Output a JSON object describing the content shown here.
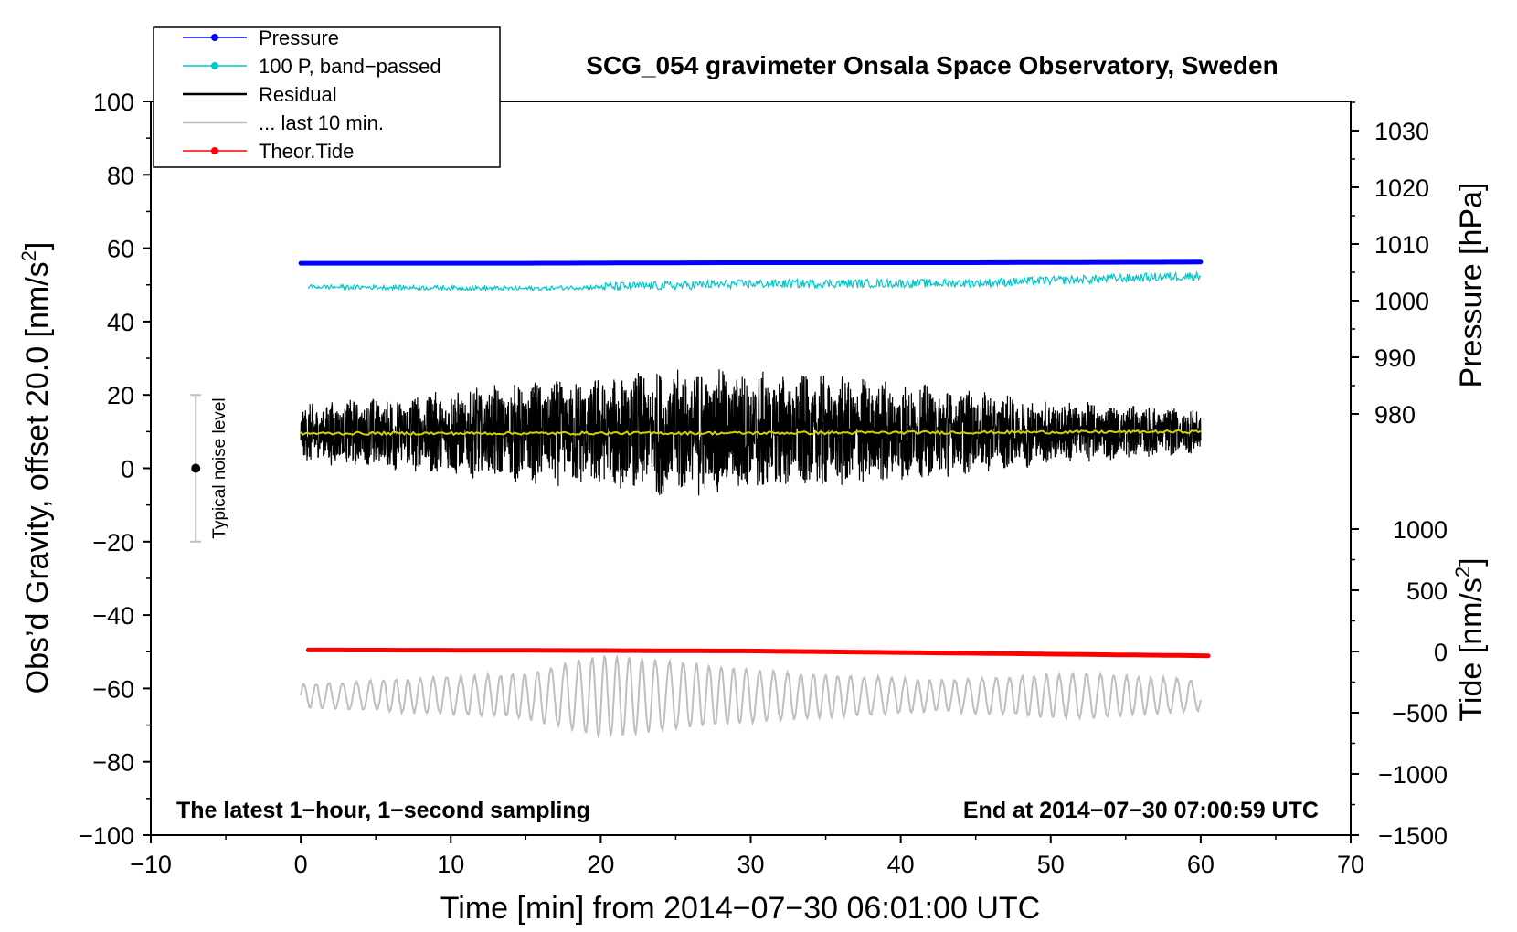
{
  "chart_data": {
    "type": "line",
    "title": "SCG_054 gravimeter Onsala Space Observatory, Sweden",
    "xlabel": "Time [min] from 2014−07−30 06:01:00 UTC",
    "ylabel_left": "Obs’d Gravity, offset 20.0 [nm/s",
    "ylabel_left_sup": "2",
    "ylabel_left_end": "]",
    "ylabel_right_pressure": "Pressure [hPa]",
    "ylabel_right_tide": "Tide [nm/s",
    "ylabel_right_tide_sup": "2",
    "ylabel_right_tide_end": "]",
    "note_left": "The latest 1−hour, 1−second sampling",
    "note_right": "End at 2014−07−30 07:00:59 UTC",
    "xlim": [
      -10,
      70
    ],
    "ylim": [
      -100,
      100
    ],
    "x_ticks": [
      -10,
      0,
      10,
      20,
      30,
      40,
      50,
      60,
      70
    ],
    "y_ticks": [
      -100,
      -80,
      -60,
      -40,
      -20,
      0,
      20,
      40,
      60,
      80,
      100
    ],
    "pressure_axis": {
      "ticks": [
        980,
        990,
        1000,
        1010,
        1020,
        1030
      ],
      "unit": "hPa"
    },
    "tide_axis": {
      "ticks": [
        -1500,
        -1000,
        -500,
        0,
        500,
        1000
      ],
      "unit": "nm/s2"
    },
    "noise_level": {
      "label": "Typical noise level",
      "x": -7,
      "center": 0,
      "range": [
        -20,
        20
      ]
    },
    "legend": [
      {
        "label": "Pressure",
        "color": "#0000ff",
        "marker": true
      },
      {
        "label": "100 P, band−passed",
        "color": "#00c8c8",
        "marker": true
      },
      {
        "label": "Residual",
        "color": "#000000",
        "marker": false
      },
      {
        "label": "... last 10 min.",
        "color": "#bfbfbf",
        "marker": false
      },
      {
        "label": "Theor.Tide",
        "color": "#ff0000",
        "marker": true
      }
    ],
    "series": [
      {
        "name": "Pressure",
        "color": "#0000ff",
        "axis": "pressure",
        "x": [
          0,
          15,
          30,
          45,
          60
        ],
        "values": [
          1006.6,
          1006.6,
          1006.7,
          1006.7,
          1006.8
        ]
      },
      {
        "name": "100 P, band−passed",
        "color": "#00c8c8",
        "axis": "gravity",
        "x": [
          0,
          15,
          30,
          45,
          60
        ],
        "values": [
          49.5,
          49.0,
          50.3,
          50.5,
          52.5
        ]
      },
      {
        "name": "Residual",
        "color": "#000000",
        "axis": "gravity",
        "x": [
          0,
          60
        ],
        "values": [
          9.5,
          10.0
        ],
        "amplitude_envelope": [
          {
            "x": 0,
            "amp": 8
          },
          {
            "x": 10,
            "amp": 12
          },
          {
            "x": 26,
            "amp": 18
          },
          {
            "x": 38,
            "amp": 15
          },
          {
            "x": 50,
            "amp": 9
          },
          {
            "x": 60,
            "amp": 6
          }
        ]
      },
      {
        "name": "Residual smoothed",
        "color": "#d0d000",
        "axis": "gravity",
        "x": [
          0,
          30,
          60
        ],
        "values": [
          9.5,
          9.6,
          10.0
        ]
      },
      {
        "name": "... last 10 min.",
        "color": "#bfbfbf",
        "axis": "gravity",
        "x": [
          0,
          60
        ],
        "values": [
          -62,
          -62
        ],
        "amplitude_envelope": [
          {
            "x": 0,
            "amp": 3
          },
          {
            "x": 15,
            "amp": 6
          },
          {
            "x": 20,
            "amp": 11
          },
          {
            "x": 30,
            "amp": 7
          },
          {
            "x": 42,
            "amp": 4
          },
          {
            "x": 52,
            "amp": 6
          },
          {
            "x": 60,
            "amp": 4
          }
        ]
      },
      {
        "name": "Theor.Tide",
        "color": "#ff0000",
        "axis": "tide",
        "x": [
          0.5,
          15,
          30,
          45,
          60.5
        ],
        "values": [
          12,
          9,
          4,
          -15,
          -35
        ]
      }
    ]
  }
}
